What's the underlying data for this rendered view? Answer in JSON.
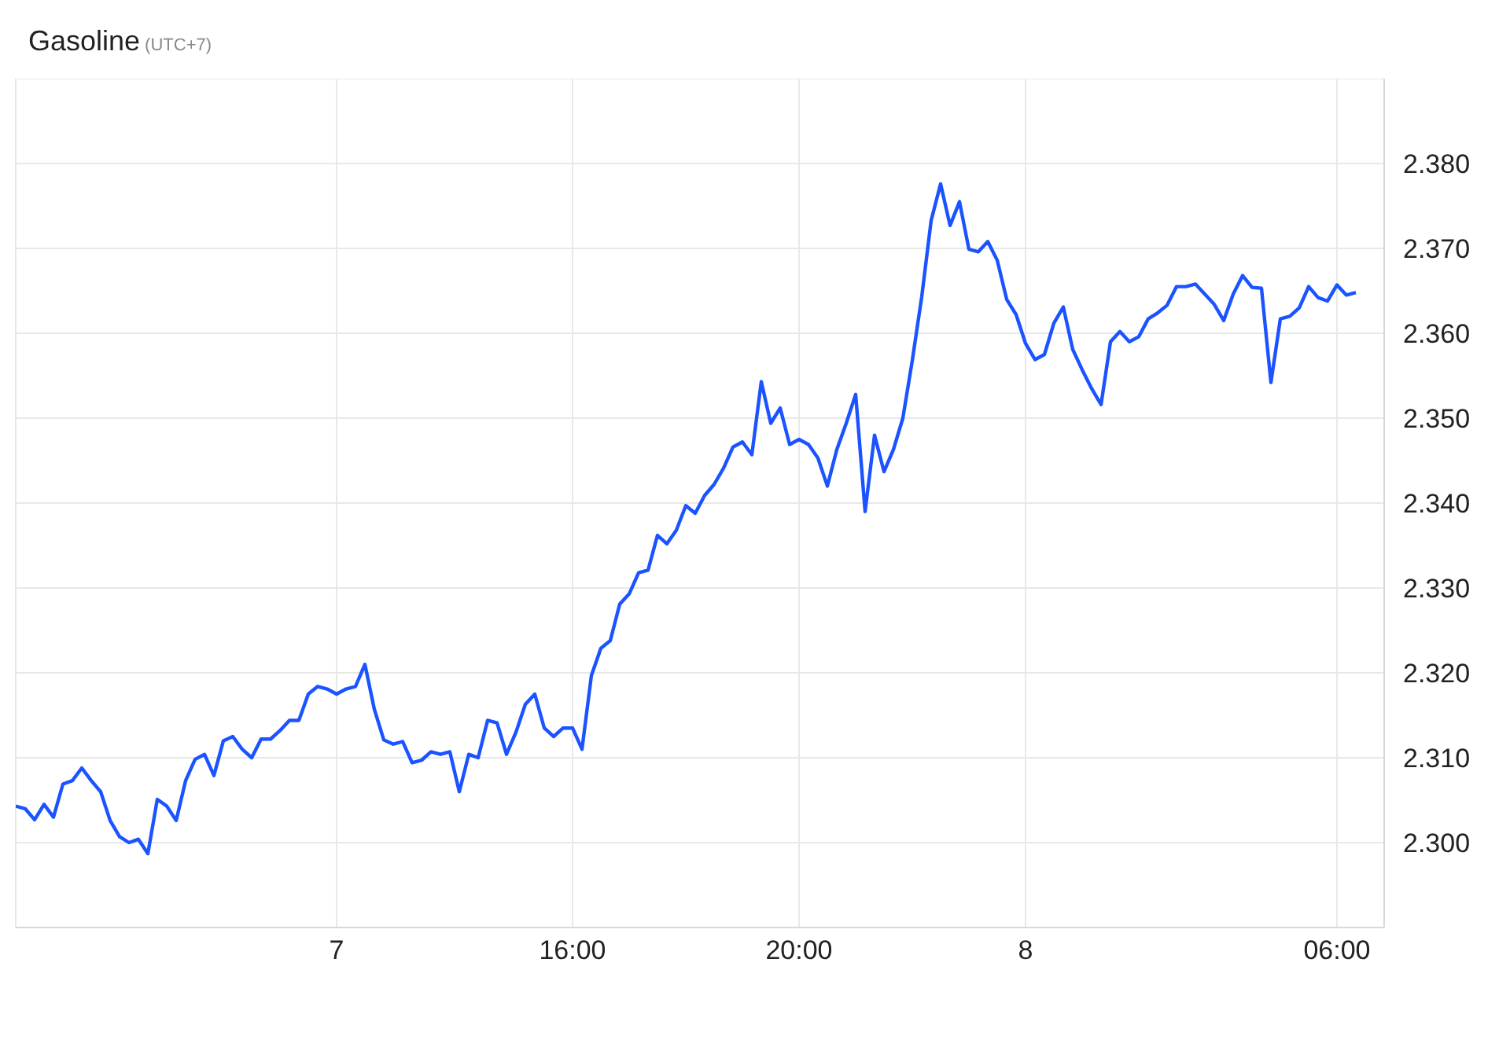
{
  "chart_data": {
    "type": "line",
    "title": "Gasoline",
    "subtitle": "(UTC+7)",
    "categories": [
      null,
      null,
      null,
      null,
      null,
      null,
      null,
      null,
      null,
      null,
      null,
      null,
      null,
      null,
      null,
      null,
      null,
      null,
      null,
      null,
      null,
      null,
      null,
      null,
      null,
      null,
      null,
      null,
      null,
      null,
      null,
      null,
      null,
      null,
      "7",
      null,
      null,
      null,
      null,
      null,
      null,
      null,
      null,
      null,
      null,
      null,
      null,
      null,
      null,
      null,
      null,
      null,
      null,
      null,
      null,
      null,
      null,
      null,
      null,
      "16:00",
      null,
      null,
      null,
      null,
      null,
      null,
      null,
      null,
      null,
      null,
      null,
      null,
      null,
      null,
      null,
      null,
      null,
      null,
      null,
      null,
      null,
      null,
      null,
      "20:00",
      null,
      null,
      null,
      null,
      null,
      null,
      null,
      null,
      null,
      null,
      null,
      null,
      null,
      null,
      null,
      null,
      null,
      null,
      null,
      null,
      null,
      null,
      null,
      "8",
      null,
      null,
      null,
      null,
      null,
      null,
      null,
      null,
      null,
      null,
      null,
      null,
      null,
      null,
      null,
      null,
      null,
      null,
      null,
      null,
      null,
      null,
      null,
      null,
      null,
      null,
      null,
      null,
      null,
      null,
      null,
      null,
      "06:00",
      null,
      null
    ],
    "series": [
      {
        "color": "#1a53ff",
        "values": [
          2.3043,
          2.304,
          2.3027,
          2.3045,
          2.303,
          2.3069,
          2.3073,
          2.3088,
          2.3073,
          2.306,
          2.3026,
          2.3007,
          2.3,
          2.3004,
          2.2987,
          2.3051,
          2.3043,
          2.3026,
          2.3073,
          2.3098,
          2.3104,
          2.3079,
          2.312,
          2.3125,
          2.311,
          2.31,
          2.3122,
          2.3122,
          2.3132,
          2.3144,
          2.3144,
          2.3175,
          2.3184,
          2.3181,
          2.3175,
          2.3181,
          2.3184,
          2.321,
          2.3157,
          2.3121,
          2.3116,
          2.3119,
          2.3094,
          2.3097,
          2.3107,
          2.3104,
          2.3107,
          2.306,
          2.3104,
          2.31,
          2.3144,
          2.3141,
          2.3104,
          2.313,
          2.3163,
          2.3175,
          2.3135,
          2.3125,
          2.3135,
          2.3135,
          2.311,
          2.3197,
          2.3229,
          2.3238,
          2.3281,
          2.3293,
          2.3318,
          2.3321,
          2.3362,
          2.3352,
          2.3368,
          2.3397,
          2.3388,
          2.3409,
          2.3422,
          2.3441,
          2.3466,
          2.3472,
          2.3457,
          2.3543,
          2.3494,
          2.3512,
          2.3469,
          2.3475,
          2.3469,
          2.3453,
          2.342,
          2.3463,
          2.3494,
          2.3528,
          2.339,
          2.348,
          2.3437,
          2.3463,
          2.35,
          2.3568,
          2.3643,
          2.3733,
          2.3776,
          2.3727,
          2.3755,
          2.3699,
          2.3696,
          2.3708,
          2.3686,
          2.364,
          2.3622,
          2.3588,
          2.3569,
          2.3575,
          2.3612,
          2.3631,
          2.3581,
          2.3557,
          2.3535,
          2.3516,
          2.359,
          2.3602,
          2.359,
          2.3596,
          2.3617,
          2.3624,
          2.3633,
          2.3655,
          2.3655,
          2.3658,
          2.3646,
          2.3634,
          2.3615,
          2.3646,
          2.3668,
          2.3654,
          2.3653,
          2.3542,
          2.3617,
          2.362,
          2.363,
          2.3655,
          2.3642,
          2.3638,
          2.3657,
          2.3645,
          2.3648
        ]
      }
    ],
    "ylim": [
      2.29,
      2.39
    ],
    "yticks": [
      {
        "value": 2.3,
        "label": "2.300"
      },
      {
        "value": 2.31,
        "label": "2.310"
      },
      {
        "value": 2.32,
        "label": "2.320"
      },
      {
        "value": 2.33,
        "label": "2.330"
      },
      {
        "value": 2.34,
        "label": "2.340"
      },
      {
        "value": 2.35,
        "label": "2.350"
      },
      {
        "value": 2.36,
        "label": "2.360"
      },
      {
        "value": 2.37,
        "label": "2.370"
      },
      {
        "value": 2.38,
        "label": "2.380"
      }
    ],
    "grid": true,
    "legend": false,
    "marker": "none",
    "line_style": "solid"
  }
}
